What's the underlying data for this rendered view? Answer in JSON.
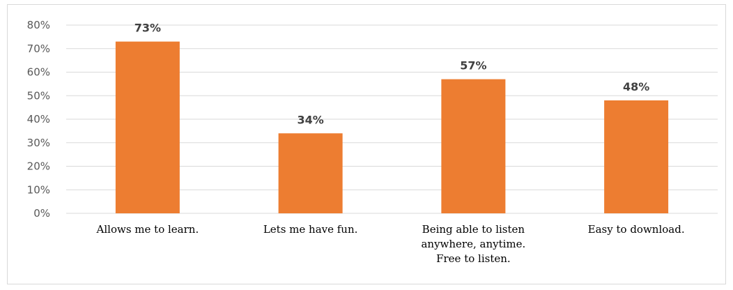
{
  "chart_data": {
    "type": "bar",
    "title": "",
    "xlabel": "",
    "ylabel": "",
    "categories": [
      [
        "Allows me to learn."
      ],
      [
        "Lets me have fun."
      ],
      [
        "Being able to listen",
        "anywhere, anytime.",
        "Free to listen."
      ],
      [
        "Easy to download."
      ]
    ],
    "values": [
      73,
      34,
      57,
      48
    ],
    "data_labels": [
      "73%",
      "34%",
      "57%",
      "48%"
    ],
    "ylim": [
      0,
      80
    ],
    "y_ticks": [
      "0%",
      "10%",
      "20%",
      "30%",
      "40%",
      "50%",
      "60%",
      "70%",
      "80%"
    ],
    "grid": true,
    "legend": "none",
    "bar_color": "#ed7d31"
  }
}
